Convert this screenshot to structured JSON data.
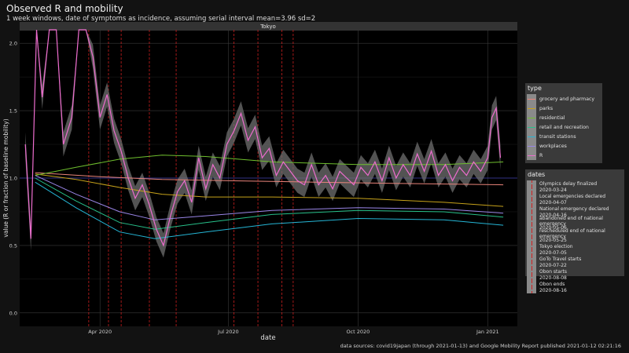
{
  "title": "Observed R and mobility",
  "subtitle": "1 week windows, date of symptoms as incidence, assuming serial interval mean=3.96 sd=2",
  "facet_label": "Tokyo",
  "caption": "data sources: covid19japan (through 2021-01-13) and Google Mobility Report published 2021-01-12 02:21:16",
  "legend_type": {
    "title": "type",
    "items": [
      {
        "label": "grocery and pharmacy",
        "color": "#e9847a"
      },
      {
        "label": "parks",
        "color": "#c6a21a"
      },
      {
        "label": "residential",
        "color": "#6fbf2e"
      },
      {
        "label": "retail and recreation",
        "color": "#27c08a"
      },
      {
        "label": "transit stations",
        "color": "#25b6d6"
      },
      {
        "label": "workplaces",
        "color": "#9a86e8"
      },
      {
        "label": "R",
        "color": "#ee6dcf"
      }
    ]
  },
  "legend_dates": {
    "title": "dates",
    "items": [
      "Olympics delay finalized",
      "2020-03-24",
      "Local emergencies declared",
      "2020-04-07",
      "National emergency declared",
      "2020-04-16",
      "abandoned end of national emergency",
      "2020-05-06",
      "rescheduled end of national emergency",
      "2020-05-25",
      "Tokyo election",
      "2020-07-05",
      "GoTo Travel starts",
      "2020-07-22",
      "Obon starts",
      "2020-08-08",
      "Obon ends",
      "2020-08-16"
    ]
  },
  "chart_data": {
    "type": "line",
    "xlabel": "date",
    "ylabel": "value (R or fraction of baseline mobility)",
    "x_ticks": [
      "Apr 2020",
      "Jul 2020",
      "Oct 2020",
      "Jan 2021"
    ],
    "x_tick_dates": [
      "2020-04-01",
      "2020-07-01",
      "2020-10-01",
      "2021-01-01"
    ],
    "y_ticks": [
      0.0,
      0.5,
      1.0,
      1.5,
      2.0
    ],
    "ylim": [
      -0.1,
      2.1
    ],
    "xlim": [
      "2020-02-04",
      "2021-01-22"
    ],
    "reference_line": 1.0,
    "event_dates": [
      "2020-03-24",
      "2020-04-07",
      "2020-04-16",
      "2020-05-06",
      "2020-05-25",
      "2020-07-05",
      "2020-07-22",
      "2020-08-08",
      "2020-08-16"
    ],
    "series": [
      {
        "name": "grocery and pharmacy",
        "color": "#e9847a",
        "x": [
          "2020-02-15",
          "2020-04-01",
          "2020-05-15",
          "2020-07-01",
          "2020-09-01",
          "2020-11-01",
          "2021-01-12"
        ],
        "values": [
          1.04,
          1.01,
          0.99,
          0.98,
          0.97,
          0.96,
          0.95
        ]
      },
      {
        "name": "parks",
        "color": "#c6a21a",
        "x": [
          "2020-02-15",
          "2020-03-15",
          "2020-04-15",
          "2020-05-15",
          "2020-06-15",
          "2020-08-01",
          "2020-10-01",
          "2020-12-01",
          "2021-01-12"
        ],
        "values": [
          1.03,
          0.99,
          0.93,
          0.88,
          0.86,
          0.86,
          0.85,
          0.82,
          0.79
        ]
      },
      {
        "name": "residential",
        "color": "#6fbf2e",
        "x": [
          "2020-02-15",
          "2020-03-15",
          "2020-04-15",
          "2020-05-15",
          "2020-06-15",
          "2020-08-01",
          "2020-10-01",
          "2020-12-01",
          "2021-01-12"
        ],
        "values": [
          1.02,
          1.08,
          1.14,
          1.17,
          1.16,
          1.12,
          1.1,
          1.1,
          1.12
        ]
      },
      {
        "name": "retail and recreation",
        "color": "#27c08a",
        "x": [
          "2020-02-15",
          "2020-03-15",
          "2020-04-15",
          "2020-05-10",
          "2020-06-15",
          "2020-08-01",
          "2020-10-01",
          "2020-12-01",
          "2021-01-12"
        ],
        "values": [
          1.0,
          0.83,
          0.67,
          0.62,
          0.67,
          0.73,
          0.76,
          0.75,
          0.71
        ]
      },
      {
        "name": "transit stations",
        "color": "#25b6d6",
        "x": [
          "2020-02-15",
          "2020-03-15",
          "2020-04-15",
          "2020-05-10",
          "2020-06-15",
          "2020-08-01",
          "2020-10-01",
          "2020-12-01",
          "2021-01-12"
        ],
        "values": [
          0.97,
          0.78,
          0.6,
          0.55,
          0.6,
          0.66,
          0.7,
          0.69,
          0.65
        ]
      },
      {
        "name": "workplaces",
        "color": "#9a86e8",
        "x": [
          "2020-02-15",
          "2020-03-15",
          "2020-04-15",
          "2020-05-10",
          "2020-06-15",
          "2020-08-01",
          "2020-10-01",
          "2020-12-01",
          "2021-01-12"
        ],
        "values": [
          1.02,
          0.88,
          0.75,
          0.69,
          0.72,
          0.76,
          0.78,
          0.77,
          0.74
        ]
      },
      {
        "name": "R",
        "color": "#ee6dcf",
        "x": [
          "2020-02-08",
          "2020-02-12",
          "2020-02-16",
          "2020-02-20",
          "2020-02-25",
          "2020-03-01",
          "2020-03-06",
          "2020-03-12",
          "2020-03-17",
          "2020-03-22",
          "2020-03-27",
          "2020-04-01",
          "2020-04-06",
          "2020-04-11",
          "2020-04-16",
          "2020-04-21",
          "2020-04-26",
          "2020-05-01",
          "2020-05-06",
          "2020-05-11",
          "2020-05-16",
          "2020-05-21",
          "2020-05-26",
          "2020-05-31",
          "2020-06-05",
          "2020-06-10",
          "2020-06-15",
          "2020-06-20",
          "2020-06-25",
          "2020-06-30",
          "2020-07-05",
          "2020-07-10",
          "2020-07-15",
          "2020-07-20",
          "2020-07-25",
          "2020-07-30",
          "2020-08-04",
          "2020-08-09",
          "2020-08-14",
          "2020-08-19",
          "2020-08-24",
          "2020-08-29",
          "2020-09-03",
          "2020-09-08",
          "2020-09-13",
          "2020-09-18",
          "2020-09-23",
          "2020-09-28",
          "2020-10-03",
          "2020-10-08",
          "2020-10-13",
          "2020-10-18",
          "2020-10-23",
          "2020-10-28",
          "2020-11-02",
          "2020-11-07",
          "2020-11-12",
          "2020-11-17",
          "2020-11-22",
          "2020-11-27",
          "2020-12-02",
          "2020-12-07",
          "2020-12-12",
          "2020-12-17",
          "2020-12-22",
          "2020-12-27",
          "2021-01-01",
          "2021-01-04",
          "2021-01-07",
          "2021-01-10"
        ],
        "values": [
          1.25,
          0.55,
          2.2,
          1.6,
          2.2,
          2.2,
          1.25,
          1.45,
          2.2,
          2.2,
          1.9,
          1.45,
          1.62,
          1.35,
          1.2,
          1.0,
          0.85,
          0.95,
          0.8,
          0.62,
          0.5,
          0.72,
          0.9,
          0.98,
          0.82,
          1.15,
          0.92,
          1.1,
          1.0,
          1.25,
          1.35,
          1.48,
          1.28,
          1.38,
          1.15,
          1.22,
          1.02,
          1.12,
          1.05,
          0.98,
          0.95,
          1.1,
          0.95,
          1.02,
          0.92,
          1.05,
          1.0,
          0.95,
          1.08,
          1.02,
          1.12,
          0.98,
          1.15,
          1.0,
          1.1,
          1.02,
          1.18,
          1.05,
          1.2,
          1.02,
          1.1,
          0.98,
          1.08,
          1.02,
          1.12,
          1.05,
          1.15,
          1.45,
          1.52,
          1.15
        ]
      }
    ]
  }
}
